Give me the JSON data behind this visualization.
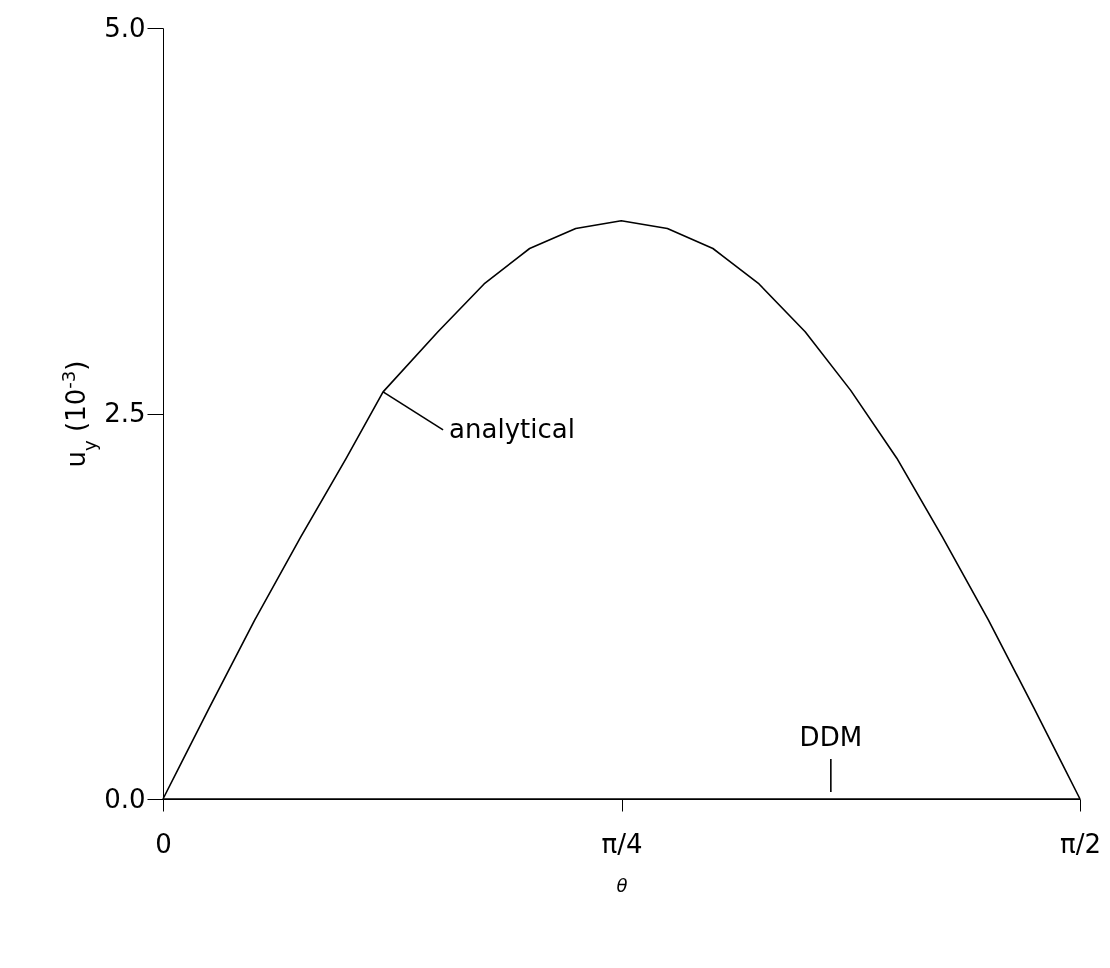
{
  "chart_data": {
    "type": "line",
    "xlabel": "θ",
    "ylabel": "u$_{y}$ (10$^{-3}$)",
    "xlim": [
      0,
      1.5708
    ],
    "xticks": [
      0,
      {
        "value": 0.7854,
        "label": "π/4"
      },
      {
        "value": 1.5708,
        "label": "π/2"
      }
    ],
    "ylim": [
      0,
      5
    ],
    "yticks": [
      {
        "value": 0,
        "label": "0.0"
      },
      {
        "value": 2.5,
        "label": "2.5"
      },
      {
        "value": 5,
        "label": "5.0"
      }
    ],
    "grid": false,
    "series": [
      {
        "name": "analytical",
        "color": "#000000",
        "x": [
          0,
          0.079,
          0.157,
          0.236,
          0.314,
          0.377,
          0.471,
          0.55,
          0.628,
          0.707,
          0.785,
          0.864,
          0.942,
          1.021,
          1.1,
          1.178,
          1.257,
          1.335,
          1.414,
          1.492,
          1.5708
        ],
        "values": [
          0,
          0.59,
          1.16,
          1.7,
          2.21,
          2.64,
          3.03,
          3.34,
          3.57,
          3.7,
          3.75,
          3.7,
          3.57,
          3.34,
          3.03,
          2.65,
          2.21,
          1.7,
          1.16,
          0.59,
          0
        ]
      },
      {
        "name": "DDM",
        "color": "#000000",
        "x": [
          0,
          1.144,
          1.5708
        ],
        "values": [
          0,
          0,
          0
        ]
      }
    ]
  }
}
